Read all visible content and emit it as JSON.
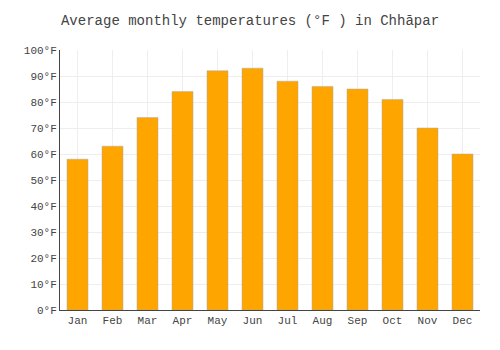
{
  "chart_data": {
    "type": "bar",
    "title": "Average monthly temperatures (°F ) in Chhāpar",
    "categories": [
      "Jan",
      "Feb",
      "Mar",
      "Apr",
      "May",
      "Jun",
      "Jul",
      "Aug",
      "Sep",
      "Oct",
      "Nov",
      "Dec"
    ],
    "values": [
      58,
      63,
      74,
      84,
      92,
      93,
      88,
      86,
      85,
      81,
      70,
      60
    ],
    "color": "#FFA500",
    "ylim": [
      0,
      100
    ],
    "yticks": [
      {
        "value": 0,
        "label": "0°F"
      },
      {
        "value": 10,
        "label": "10°F"
      },
      {
        "value": 20,
        "label": "20°F"
      },
      {
        "value": 30,
        "label": "30°F"
      },
      {
        "value": 40,
        "label": "40°F"
      },
      {
        "value": 50,
        "label": "50°F"
      },
      {
        "value": 60,
        "label": "60°F"
      },
      {
        "value": 70,
        "label": "70°F"
      },
      {
        "value": 80,
        "label": "80°F"
      },
      {
        "value": 90,
        "label": "90°F"
      },
      {
        "value": 100,
        "label": "100°F"
      }
    ],
    "grid": true
  }
}
